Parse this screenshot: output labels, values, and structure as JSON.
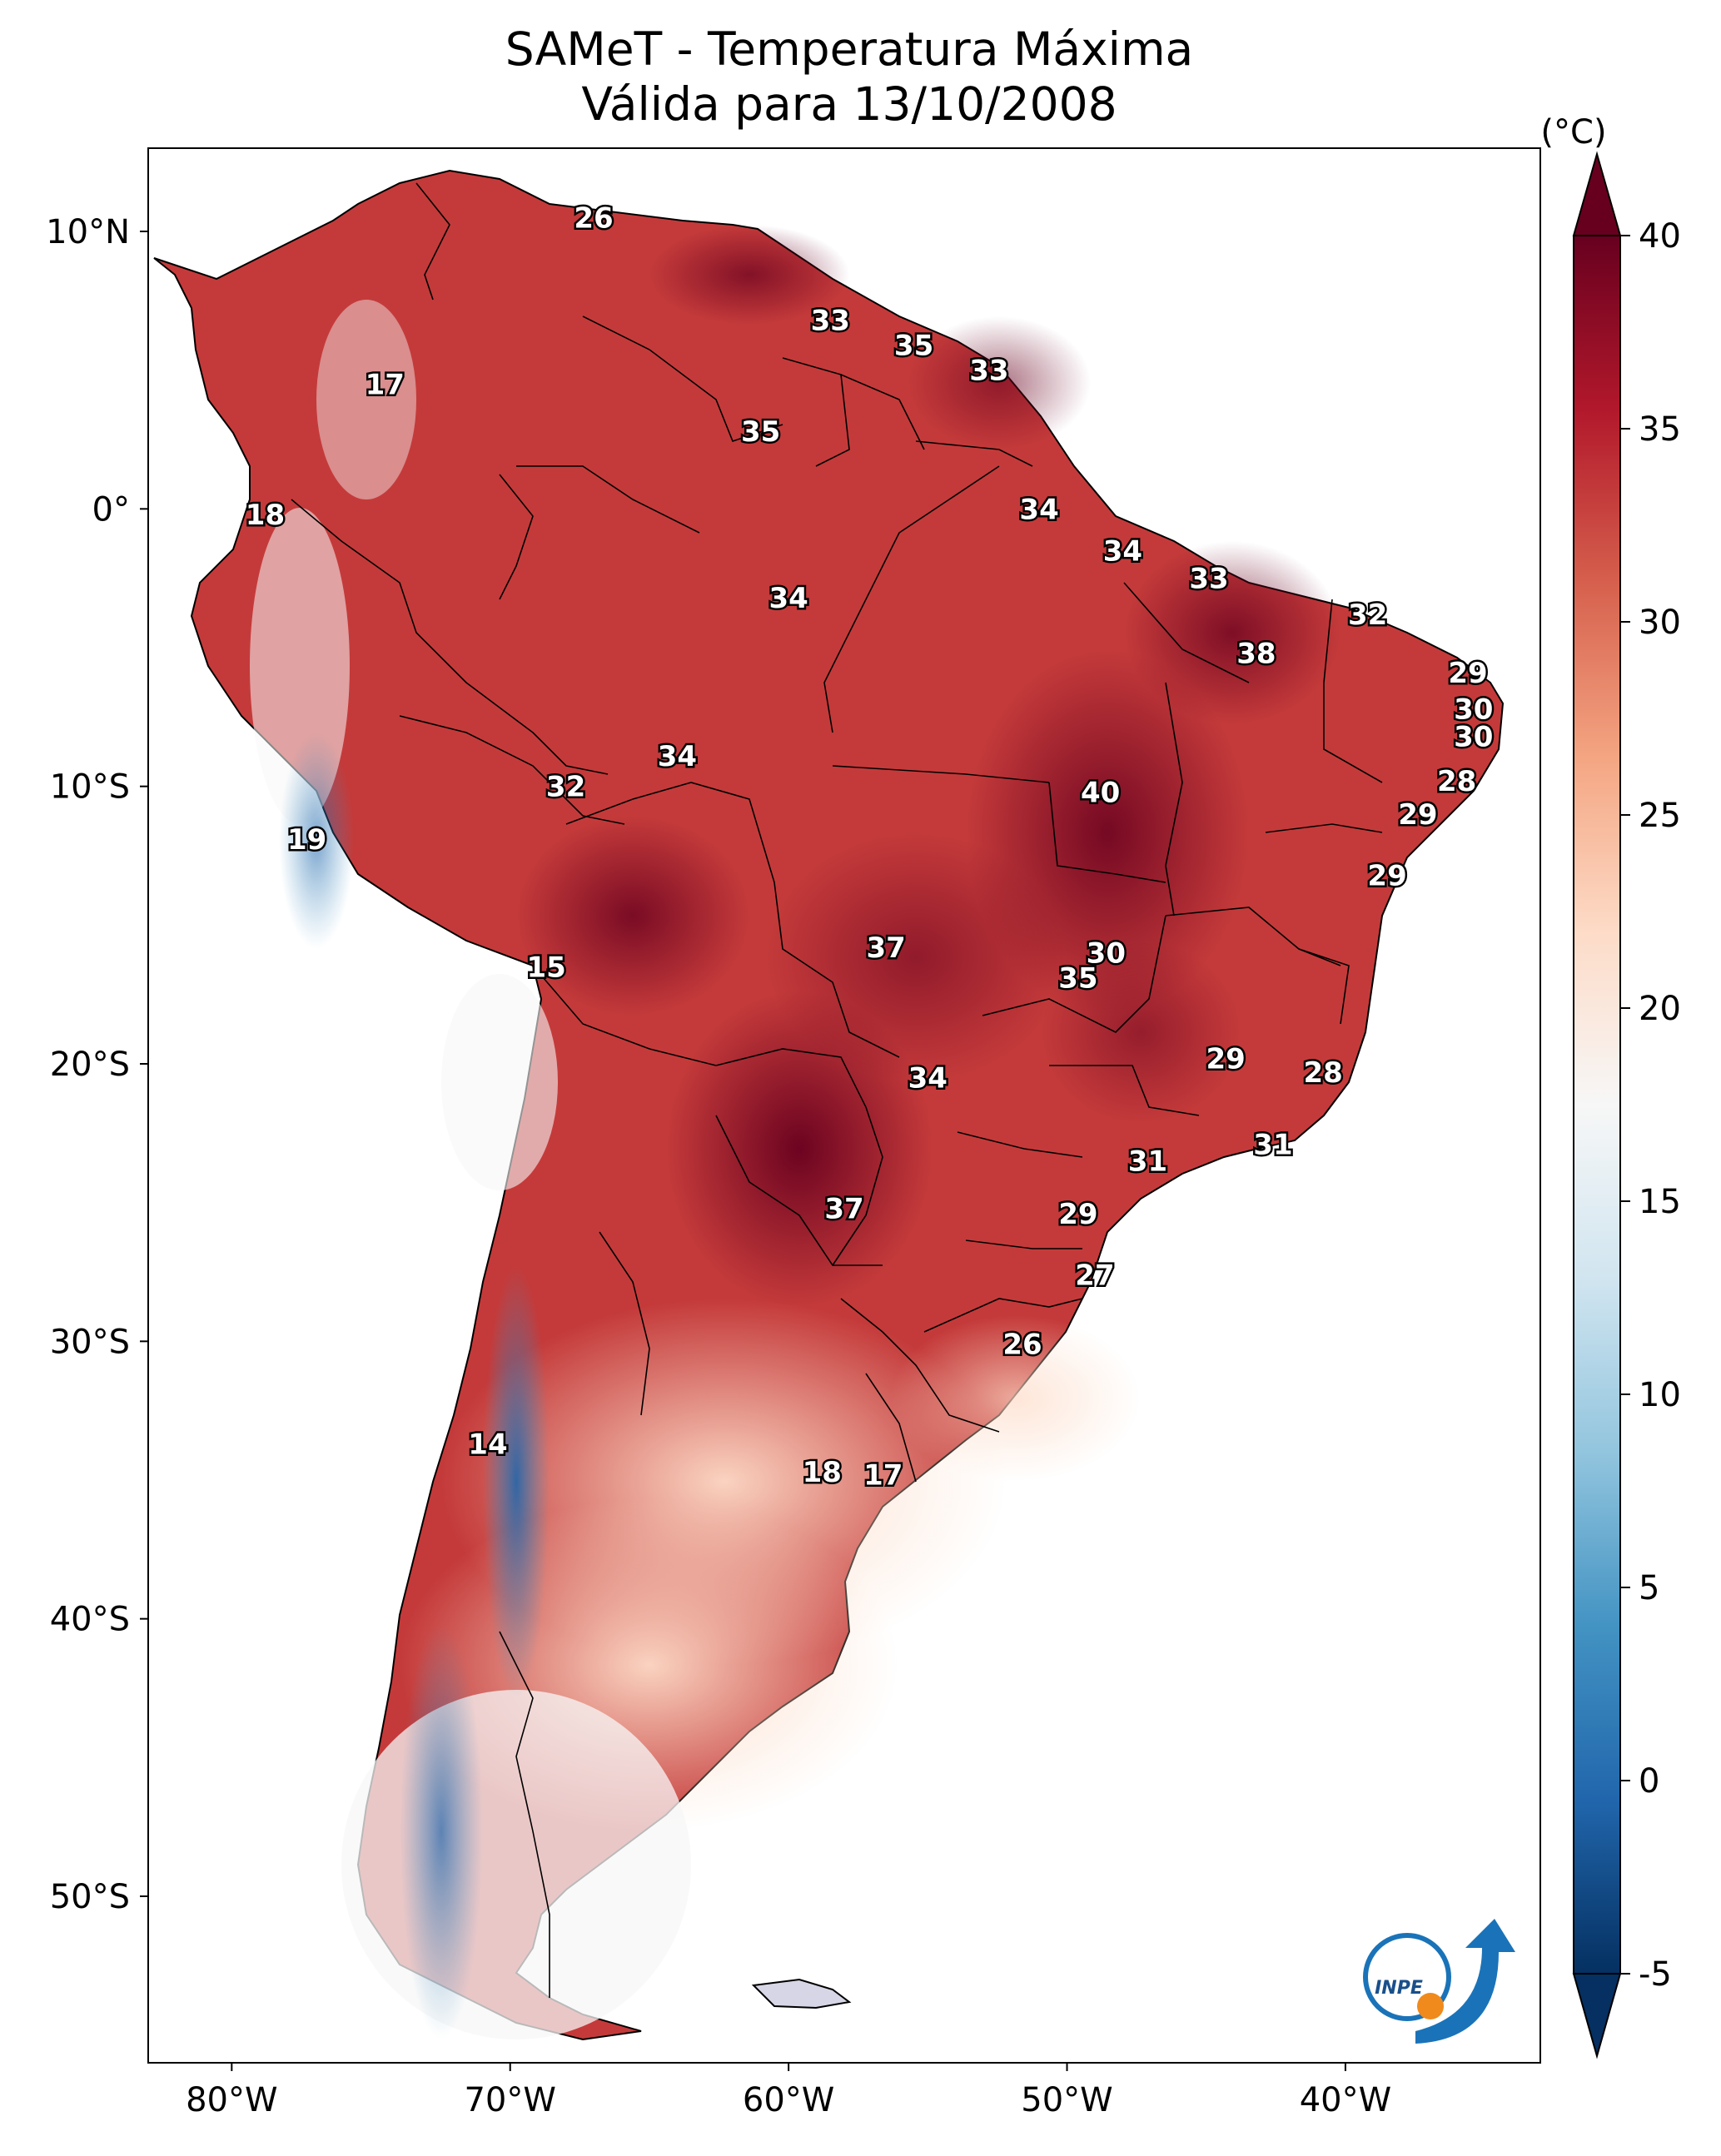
{
  "title": {
    "line1": "SAMeT - Temperatura Máxima",
    "line2": "Válida para 13/10/2008"
  },
  "map": {
    "lat_ticks": [
      "10°N",
      "0°",
      "10°S",
      "20°S",
      "30°S",
      "40°S",
      "50°S"
    ],
    "lon_ticks": [
      "80°W",
      "70°W",
      "60°W",
      "50°W",
      "40°W"
    ],
    "lat_values": [
      10,
      0,
      -10,
      -20,
      -30,
      -40,
      -50
    ],
    "lon_values": [
      -80,
      -70,
      -60,
      -50,
      -40
    ],
    "extent": {
      "lon": [
        -83,
        -33
      ],
      "lat": [
        -56,
        13
      ]
    }
  },
  "colorbar": {
    "unit": "(°C)",
    "ticks": [
      "40",
      "35",
      "30",
      "25",
      "20",
      "15",
      "10",
      "5",
      "0",
      "-5"
    ],
    "tick_values": [
      40,
      35,
      30,
      25,
      20,
      15,
      10,
      5,
      0,
      -5
    ],
    "range": [
      -5,
      40
    ],
    "colors": [
      "#053061",
      "#2166ac",
      "#4393c3",
      "#92c5de",
      "#d1e5f0",
      "#f7f7f7",
      "#fddbc7",
      "#f4a582",
      "#d6604d",
      "#b2182b",
      "#67001f"
    ]
  },
  "labels": [
    {
      "text": "26",
      "lon": -67.0,
      "lat": 10.5
    },
    {
      "text": "17",
      "lon": -74.5,
      "lat": 4.5
    },
    {
      "text": "18",
      "lon": -78.8,
      "lat": -0.2
    },
    {
      "text": "33",
      "lon": -58.5,
      "lat": 6.8
    },
    {
      "text": "35",
      "lon": -55.5,
      "lat": 5.9
    },
    {
      "text": "33",
      "lon": -52.8,
      "lat": 5.0
    },
    {
      "text": "35",
      "lon": -61.0,
      "lat": 2.8
    },
    {
      "text": "34",
      "lon": -51.0,
      "lat": 0.0
    },
    {
      "text": "34",
      "lon": -48.0,
      "lat": -1.5
    },
    {
      "text": "33",
      "lon": -44.9,
      "lat": -2.5
    },
    {
      "text": "32",
      "lon": -39.2,
      "lat": -3.8
    },
    {
      "text": "34",
      "lon": -60.0,
      "lat": -3.2
    },
    {
      "text": "38",
      "lon": -43.2,
      "lat": -5.2
    },
    {
      "text": "29",
      "lon": -35.6,
      "lat": -5.9
    },
    {
      "text": "30",
      "lon": -35.4,
      "lat": -7.2
    },
    {
      "text": "30",
      "lon": -35.4,
      "lat": -8.2
    },
    {
      "text": "34",
      "lon": -64.0,
      "lat": -8.9
    },
    {
      "text": "32",
      "lon": -68.0,
      "lat": -10.0
    },
    {
      "text": "40",
      "lon": -48.8,
      "lat": -10.2
    },
    {
      "text": "28",
      "lon": -36.0,
      "lat": -9.8
    },
    {
      "text": "29",
      "lon": -37.4,
      "lat": -11.0
    },
    {
      "text": "19",
      "lon": -77.3,
      "lat": -11.9
    },
    {
      "text": "29",
      "lon": -38.5,
      "lat": -13.2
    },
    {
      "text": "15",
      "lon": -68.7,
      "lat": -16.5
    },
    {
      "text": "37",
      "lon": -56.5,
      "lat": -15.8
    },
    {
      "text": "30",
      "lon": -48.6,
      "lat": -16.0
    },
    {
      "text": "35",
      "lon": -49.6,
      "lat": -16.9
    },
    {
      "text": "29",
      "lon": -44.3,
      "lat": -19.8
    },
    {
      "text": "28",
      "lon": -40.8,
      "lat": -20.3
    },
    {
      "text": "34",
      "lon": -55.0,
      "lat": -20.5
    },
    {
      "text": "31",
      "lon": -47.1,
      "lat": -23.5
    },
    {
      "text": "31",
      "lon": -42.6,
      "lat": -22.9
    },
    {
      "text": "37",
      "lon": -58.0,
      "lat": -25.2
    },
    {
      "text": "29",
      "lon": -49.6,
      "lat": -25.4
    },
    {
      "text": "27",
      "lon": -49.0,
      "lat": -27.6
    },
    {
      "text": "26",
      "lon": -51.6,
      "lat": -30.1
    },
    {
      "text": "14",
      "lon": -70.8,
      "lat": -33.7
    },
    {
      "text": "18",
      "lon": -58.8,
      "lat": -34.7
    },
    {
      "text": "17",
      "lon": -56.6,
      "lat": -34.8
    }
  ],
  "logo": {
    "text": "INPE"
  }
}
